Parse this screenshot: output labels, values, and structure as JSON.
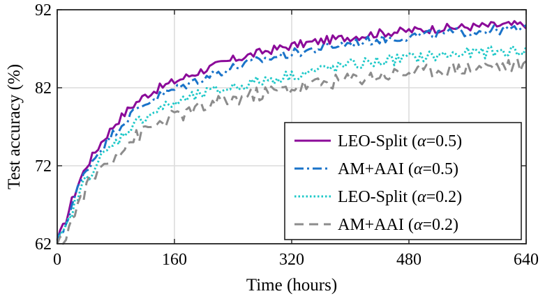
{
  "chart_data": {
    "type": "line",
    "title": "",
    "xlabel": "Time (hours)",
    "ylabel": "Test accuracy (%)",
    "xlim": [
      0,
      640
    ],
    "ylim": [
      62,
      92
    ],
    "xticks": [
      0,
      160,
      320,
      480,
      640
    ],
    "yticks": [
      62,
      72,
      82,
      92
    ],
    "xtick_labels": [
      "0",
      "160",
      "320",
      "480",
      "640"
    ],
    "ytick_labels": [
      "62",
      "72",
      "82",
      "92"
    ],
    "grid": true,
    "legend_position": "bottom-right",
    "x": [
      0,
      10,
      20,
      30,
      40,
      60,
      80,
      100,
      120,
      140,
      160,
      200,
      240,
      280,
      320,
      360,
      400,
      440,
      480,
      520,
      560,
      600,
      640
    ],
    "series": [
      {
        "name": "LEO-Split",
        "alpha": "0.5",
        "color": "#8b0a99",
        "style": "solid",
        "values": [
          62.5,
          64.5,
          67.5,
          70.0,
          72.0,
          75.0,
          77.5,
          79.5,
          81.0,
          82.0,
          82.8,
          84.3,
          85.6,
          86.6,
          87.4,
          88.0,
          88.5,
          89.0,
          89.3,
          89.6,
          89.8,
          90.0,
          90.1
        ]
      },
      {
        "name": "AM+AAI",
        "alpha": "0.5",
        "color": "#1a73c9",
        "style": "dashdot",
        "values": [
          62.3,
          64.0,
          67.0,
          69.5,
          71.5,
          74.3,
          76.5,
          78.5,
          80.0,
          81.0,
          81.8,
          83.3,
          84.6,
          85.6,
          86.4,
          87.1,
          87.7,
          88.2,
          88.6,
          88.9,
          89.2,
          89.4,
          89.5
        ]
      },
      {
        "name": "LEO-Split",
        "alpha": "0.2",
        "color": "#1ec8c8",
        "style": "dotted",
        "values": [
          62.0,
          63.5,
          66.0,
          68.5,
          70.5,
          73.0,
          75.0,
          77.0,
          78.3,
          79.3,
          80.0,
          81.2,
          82.1,
          82.9,
          83.6,
          84.3,
          84.9,
          85.4,
          85.8,
          86.1,
          86.4,
          86.6,
          86.8
        ]
      },
      {
        "name": "AM+AAI",
        "alpha": "0.2",
        "color": "#8c8c8c",
        "style": "dashed",
        "values": [
          61.5,
          62.8,
          65.0,
          67.3,
          69.3,
          71.8,
          73.5,
          75.2,
          76.5,
          77.5,
          78.3,
          79.5,
          80.5,
          81.3,
          82.0,
          82.6,
          83.1,
          83.6,
          84.0,
          84.3,
          84.6,
          84.8,
          85.0
        ]
      }
    ]
  }
}
